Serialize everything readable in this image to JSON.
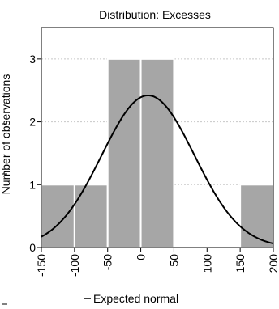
{
  "chart_data": {
    "type": "bar",
    "title": "Distribution: Excesses",
    "xlabel": "",
    "ylabel": "Number of observations",
    "bins": [
      {
        "from": -150,
        "to": -100,
        "count": 1
      },
      {
        "from": -100,
        "to": -50,
        "count": 1
      },
      {
        "from": -50,
        "to": 0,
        "count": 3
      },
      {
        "from": 0,
        "to": 50,
        "count": 3
      },
      {
        "from": 50,
        "to": 100,
        "count": 0
      },
      {
        "from": 100,
        "to": 150,
        "count": 0
      },
      {
        "from": 150,
        "to": 200,
        "count": 1
      }
    ],
    "xticks": [
      "-150",
      "-100",
      "-50",
      "0",
      "50",
      "100",
      "150",
      "200"
    ],
    "yticks": [
      "0",
      "1",
      "2",
      "3"
    ],
    "xlim": [
      -150,
      200
    ],
    "ylim": [
      0,
      3.5
    ],
    "normal_curve": {
      "name": "Expected normal",
      "mean": 11,
      "sd": 70,
      "peak": 2.42
    },
    "legend": "Expected normal",
    "grid": true,
    "colors": {
      "bar": "#a6a6a6",
      "curve": "#000000",
      "grid": "#c8c8c8"
    }
  }
}
